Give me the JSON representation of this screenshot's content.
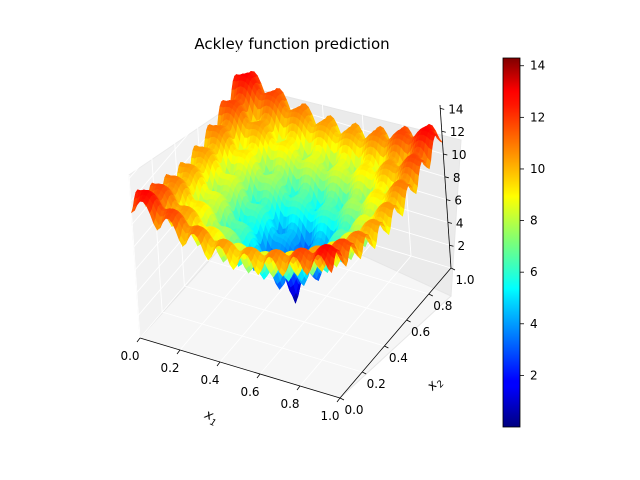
{
  "chart_data": {
    "type": "surface3d",
    "title": "Ackley function prediction",
    "xlabel": "x",
    "xlabel_sub": "1",
    "ylabel": "x",
    "ylabel_sub": "2",
    "xlim": [
      0.0,
      1.0
    ],
    "ylim": [
      0.0,
      1.0
    ],
    "zlim": [
      0.0,
      14.3
    ],
    "x_ticks": [
      "0.0",
      "0.2",
      "0.4",
      "0.6",
      "0.8",
      "1.0"
    ],
    "y_ticks": [
      "0.0",
      "0.2",
      "0.4",
      "0.6",
      "0.8",
      "1.0"
    ],
    "z_ticks": [
      "2",
      "4",
      "6",
      "8",
      "10",
      "12",
      "14"
    ],
    "colorbar": {
      "colormap": "jet",
      "range": [
        0.0,
        14.3
      ],
      "ticks": [
        "2",
        "4",
        "6",
        "8",
        "10",
        "12",
        "14"
      ]
    },
    "surface": {
      "function": "ackley",
      "minimum_at": [
        0.5,
        0.5
      ],
      "min_value": 0.0,
      "max_value": 14.3
    }
  }
}
